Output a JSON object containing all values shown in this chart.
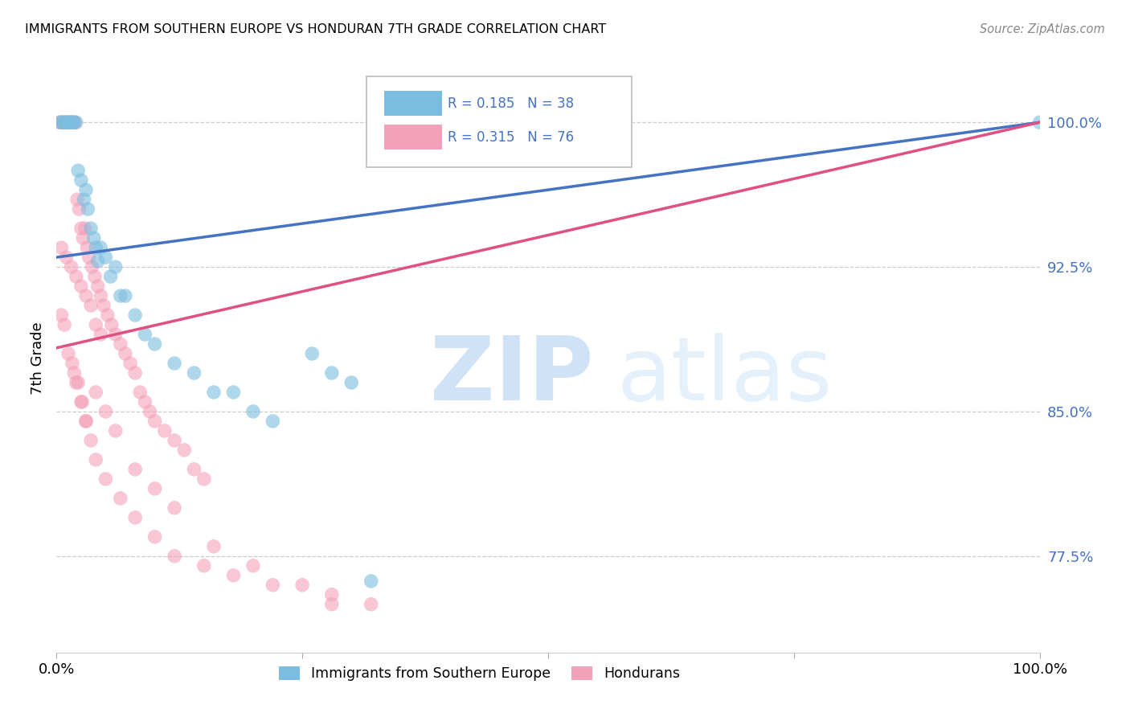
{
  "title": "IMMIGRANTS FROM SOUTHERN EUROPE VS HONDURAN 7TH GRADE CORRELATION CHART",
  "source": "Source: ZipAtlas.com",
  "ylabel": "7th Grade",
  "ytick_labels": [
    "77.5%",
    "85.0%",
    "92.5%",
    "100.0%"
  ],
  "ytick_values": [
    0.775,
    0.85,
    0.925,
    1.0
  ],
  "xlim": [
    0.0,
    1.0
  ],
  "ylim": [
    0.725,
    1.03
  ],
  "legend_blue_label": "Immigrants from Southern Europe",
  "legend_pink_label": "Hondurans",
  "blue_color": "#7bbde0",
  "pink_color": "#f4a0b8",
  "blue_line_color": "#4472c4",
  "pink_line_color": "#e05080",
  "grid_color": "#cccccc",
  "blue_scatter_x": [
    0.004,
    0.006,
    0.008,
    0.01,
    0.012,
    0.014,
    0.016,
    0.018,
    0.02,
    0.022,
    0.025,
    0.028,
    0.03,
    0.032,
    0.035,
    0.038,
    0.04,
    0.042,
    0.045,
    0.05,
    0.055,
    0.06,
    0.065,
    0.07,
    0.08,
    0.09,
    0.1,
    0.12,
    0.14,
    0.16,
    0.18,
    0.2,
    0.22,
    0.26,
    0.28,
    0.3,
    0.32,
    1.0
  ],
  "blue_scatter_y": [
    1.0,
    1.0,
    1.0,
    1.0,
    1.0,
    1.0,
    1.0,
    1.0,
    1.0,
    0.975,
    0.97,
    0.96,
    0.965,
    0.955,
    0.945,
    0.94,
    0.935,
    0.928,
    0.935,
    0.93,
    0.92,
    0.925,
    0.91,
    0.91,
    0.9,
    0.89,
    0.885,
    0.875,
    0.87,
    0.86,
    0.86,
    0.85,
    0.845,
    0.88,
    0.87,
    0.865,
    0.762,
    1.0
  ],
  "pink_scatter_x": [
    0.003,
    0.005,
    0.007,
    0.009,
    0.011,
    0.013,
    0.015,
    0.017,
    0.019,
    0.021,
    0.023,
    0.025,
    0.027,
    0.029,
    0.031,
    0.033,
    0.036,
    0.039,
    0.042,
    0.045,
    0.048,
    0.052,
    0.056,
    0.06,
    0.065,
    0.07,
    0.075,
    0.08,
    0.085,
    0.09,
    0.095,
    0.1,
    0.11,
    0.12,
    0.13,
    0.14,
    0.15,
    0.005,
    0.01,
    0.015,
    0.02,
    0.025,
    0.03,
    0.035,
    0.04,
    0.045,
    0.005,
    0.008,
    0.012,
    0.016,
    0.02,
    0.025,
    0.03,
    0.04,
    0.05,
    0.06,
    0.08,
    0.1,
    0.12,
    0.16,
    0.2,
    0.25,
    0.28,
    0.018,
    0.022,
    0.026,
    0.03,
    0.035,
    0.04,
    0.05,
    0.065,
    0.08,
    0.1,
    0.12,
    0.15,
    0.18,
    0.22,
    0.28,
    0.32
  ],
  "pink_scatter_y": [
    1.0,
    1.0,
    1.0,
    1.0,
    1.0,
    1.0,
    1.0,
    1.0,
    1.0,
    0.96,
    0.955,
    0.945,
    0.94,
    0.945,
    0.935,
    0.93,
    0.925,
    0.92,
    0.915,
    0.91,
    0.905,
    0.9,
    0.895,
    0.89,
    0.885,
    0.88,
    0.875,
    0.87,
    0.86,
    0.855,
    0.85,
    0.845,
    0.84,
    0.835,
    0.83,
    0.82,
    0.815,
    0.935,
    0.93,
    0.925,
    0.92,
    0.915,
    0.91,
    0.905,
    0.895,
    0.89,
    0.9,
    0.895,
    0.88,
    0.875,
    0.865,
    0.855,
    0.845,
    0.86,
    0.85,
    0.84,
    0.82,
    0.81,
    0.8,
    0.78,
    0.77,
    0.76,
    0.75,
    0.87,
    0.865,
    0.855,
    0.845,
    0.835,
    0.825,
    0.815,
    0.805,
    0.795,
    0.785,
    0.775,
    0.77,
    0.765,
    0.76,
    0.755,
    0.75
  ]
}
